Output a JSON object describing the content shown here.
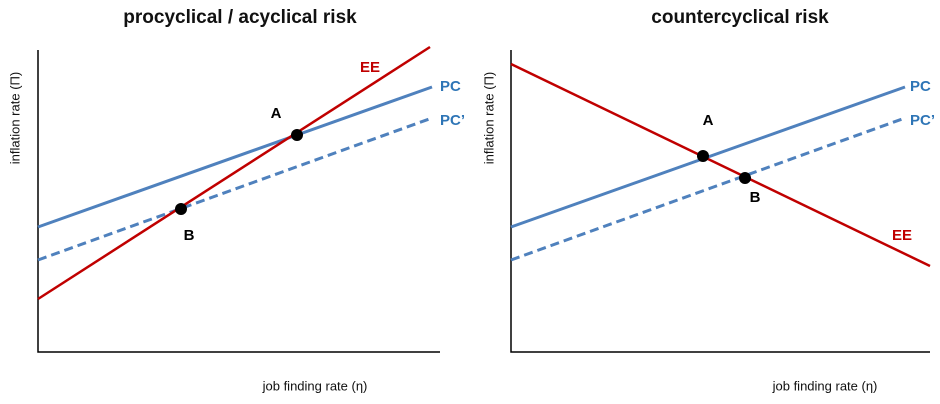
{
  "panels": [
    {
      "title": "procyclical / acyclical  risk",
      "y_axis_label": "inflation rate (Π)",
      "x_axis_label": "job finding rate (η)",
      "curve_labels": [
        "EE",
        "PC",
        "PC’"
      ],
      "point_labels": [
        "A",
        "B"
      ]
    },
    {
      "title": "countercyclical risk",
      "y_axis_label": "inflation rate (Π)",
      "x_axis_label": "job finding rate (η)",
      "curve_labels": [
        "EE",
        "PC",
        "PC’"
      ],
      "point_labels": [
        "A",
        "B"
      ]
    }
  ]
}
